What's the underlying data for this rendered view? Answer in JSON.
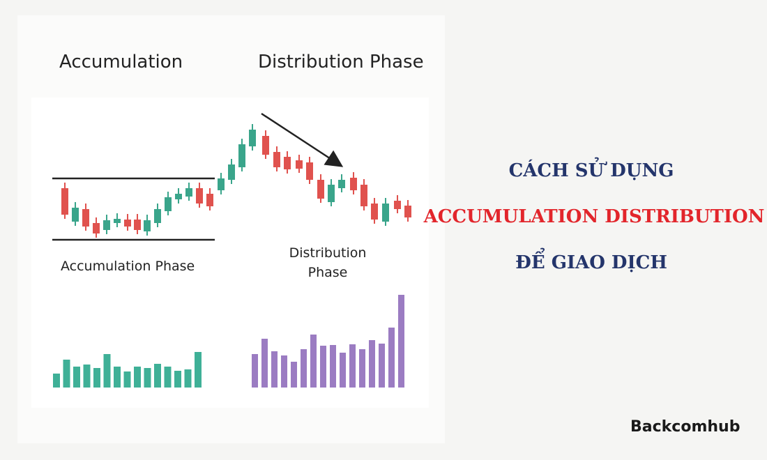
{
  "illustration": {
    "heading_left": "Accumulation",
    "heading_right": "Distribution Phase",
    "label_accumulation": "Accumulation Phase",
    "label_distribution": [
      "Distribution",
      "Phase"
    ]
  },
  "headline": [
    "CÁCH SỬ DỤNG",
    "ACCUMULATION DISTRIBUTION",
    "ĐỂ GIAO DỊCH"
  ],
  "brand": "Backcomhub"
}
